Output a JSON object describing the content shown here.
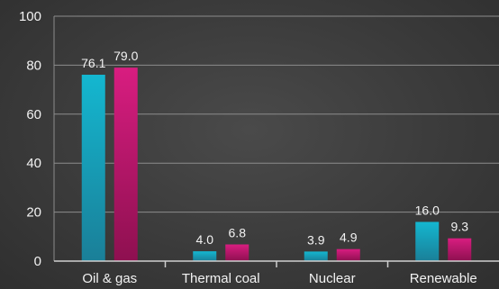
{
  "chart_data": {
    "type": "bar",
    "categories": [
      "Oil & gas",
      "Thermal coal",
      "Nuclear",
      "Renewable"
    ],
    "series": [
      {
        "values": [
          76.1,
          4.0,
          3.9,
          16.0
        ],
        "labels": [
          "76.1",
          "4.0",
          "3.9",
          "16.0"
        ]
      },
      {
        "values": [
          79.0,
          6.8,
          4.9,
          9.3
        ],
        "labels": [
          "79.0",
          "6.8",
          "4.9",
          "9.3"
        ]
      }
    ],
    "yticks": [
      "0",
      "20",
      "40",
      "60",
      "80",
      "100"
    ],
    "ylim": [
      0,
      100
    ],
    "grid": true,
    "legend": "none"
  },
  "colors": {
    "series_1": "#1aa6bf",
    "series_2": "#c8186f",
    "grid": "#8c8c8c",
    "text": "#f2f2f2"
  }
}
